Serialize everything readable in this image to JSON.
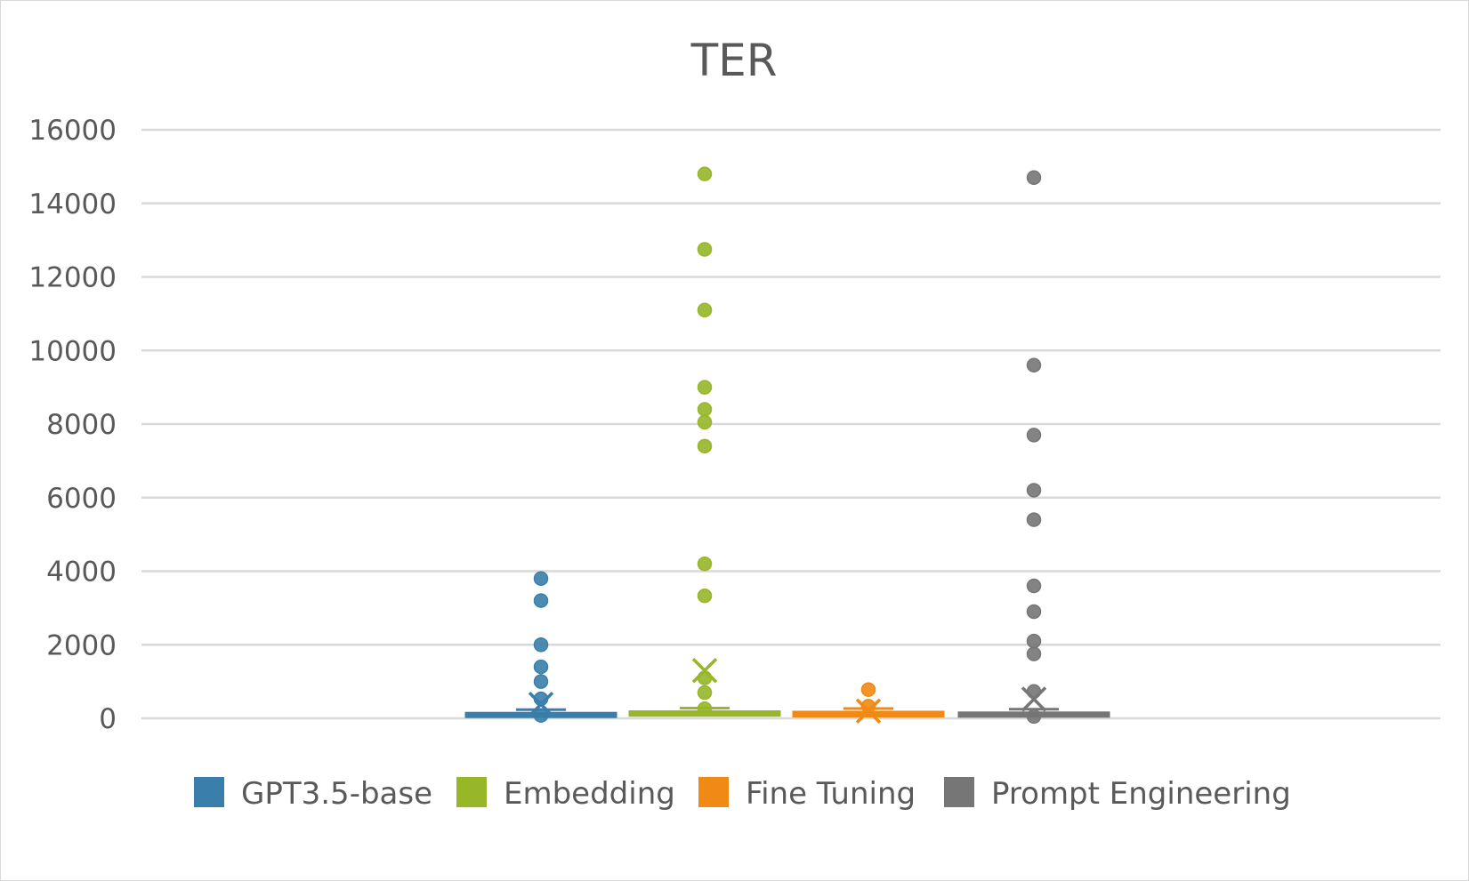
{
  "chart_data": {
    "type": "box",
    "title": "TER",
    "xlabel": "",
    "ylabel": "",
    "ylim": [
      0,
      16000
    ],
    "y_ticks": [
      "0",
      "2000",
      "4000",
      "6000",
      "8000",
      "10000",
      "12000",
      "14000",
      "16000"
    ],
    "grid": true,
    "legend_position": "bottom",
    "series": [
      {
        "name": "GPT3.5-base",
        "color": "#3A7EAB",
        "median": 100,
        "q1": 60,
        "q3": 140,
        "mean": 380,
        "outliers": [
          3800,
          3200,
          2000,
          1400,
          1000,
          530,
          80
        ]
      },
      {
        "name": "Embedding",
        "color": "#97B628",
        "median": 120,
        "q1": 80,
        "q3": 180,
        "mean": 1300,
        "outliers": [
          14800,
          12750,
          11100,
          9000,
          8400,
          8050,
          7400,
          4200,
          3330,
          1100,
          700,
          260
        ]
      },
      {
        "name": "Fine Tuning",
        "color": "#F08A14",
        "median": 110,
        "q1": 60,
        "q3": 170,
        "mean": 200,
        "outliers": [
          780,
          330
        ]
      },
      {
        "name": "Prompt Engineering",
        "color": "#767676",
        "median": 110,
        "q1": 70,
        "q3": 150,
        "mean": 520,
        "outliers": [
          14700,
          9600,
          7700,
          6200,
          5400,
          3600,
          2900,
          2100,
          1750,
          730,
          50
        ]
      }
    ]
  }
}
